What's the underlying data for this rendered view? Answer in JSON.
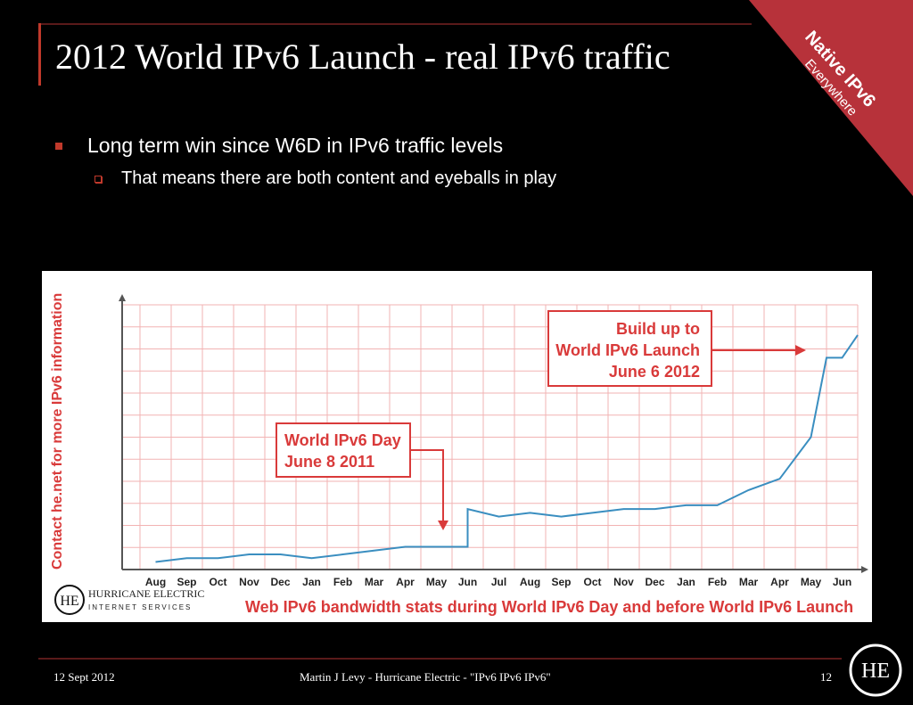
{
  "slide": {
    "title": "2012 World IPv6 Launch - real IPv6 traffic",
    "corner_badge": {
      "line1": "Native IPv6",
      "line2": "Everywhere"
    },
    "bullets": [
      {
        "text": "Long term win since W6D in IPv6 traffic levels"
      },
      {
        "text": "That means there are both content and eyeballs in play"
      }
    ],
    "footer": {
      "date": "12 Sept 2012",
      "center": "Martin J Levy - Hurricane Electric - \"IPv6 IPv6 IPv6\"",
      "page": "12"
    }
  },
  "chart_data": {
    "type": "line",
    "side_label": "Contact he.net for more IPv6 information",
    "x_ticks": [
      "Aug",
      "Sep",
      "Oct",
      "Nov",
      "Dec",
      "Jan",
      "Feb",
      "Mar",
      "Apr",
      "May",
      "Jun",
      "Jul",
      "Aug",
      "Sep",
      "Oct",
      "Nov",
      "Dec",
      "Jan",
      "Feb",
      "Mar",
      "Apr",
      "May",
      "Jun"
    ],
    "annotation1": {
      "line1": "World IPv6 Day",
      "line2": "June 8 2011"
    },
    "annotation2": {
      "line1": "Build up to",
      "line2": "World IPv6 Launch",
      "line3": "June 6 2012"
    },
    "caption": "Web IPv6 bandwidth stats during World IPv6 Day and before World IPv6 Launch",
    "logo_text": {
      "line1": "HURRICANE ELECTRIC",
      "line2": "INTERNET SERVICES"
    },
    "series": [
      {
        "x": [
          0,
          1,
          2,
          3,
          4,
          5,
          6,
          7,
          8,
          9,
          10,
          10,
          11,
          12,
          13,
          14,
          15,
          16,
          17,
          18,
          19,
          20,
          21,
          21.5,
          22,
          22.5
        ],
        "values": [
          2,
          3,
          3,
          4,
          4,
          3,
          4,
          5,
          6,
          6,
          6,
          16,
          14,
          15,
          14,
          15,
          16,
          16,
          17,
          17,
          21,
          24,
          35,
          56,
          56,
          62
        ]
      }
    ],
    "ylim": [
      0,
      70
    ],
    "grid": true,
    "colors": {
      "line": "#3a8ec0",
      "grid": "#f2b3b3",
      "accent": "#d93a3a"
    }
  }
}
